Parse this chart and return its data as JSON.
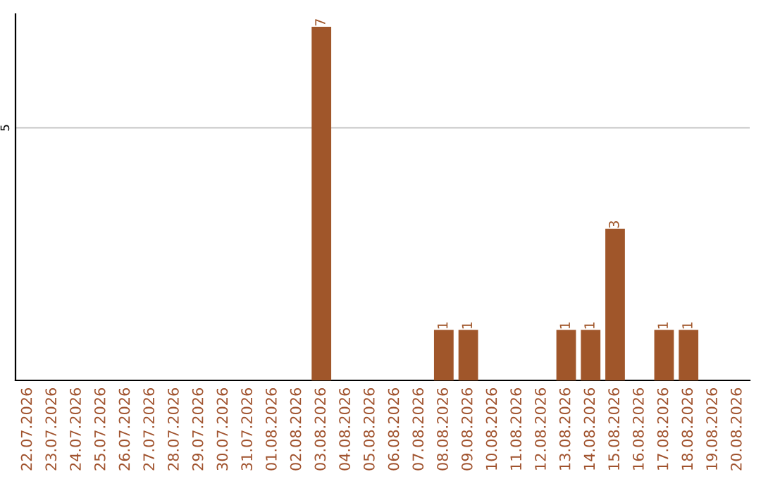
{
  "chart_data": {
    "type": "bar",
    "categories": [
      "22.07.2026",
      "23.07.2026",
      "24.07.2026",
      "25.07.2026",
      "26.07.2026",
      "27.07.2026",
      "28.07.2026",
      "29.07.2026",
      "30.07.2026",
      "31.07.2026",
      "01.08.2026",
      "02.08.2026",
      "03.08.2026",
      "04.08.2026",
      "05.08.2026",
      "06.08.2026",
      "07.08.2026",
      "08.08.2026",
      "09.08.2026",
      "10.08.2026",
      "11.08.2026",
      "12.08.2026",
      "13.08.2026",
      "14.08.2026",
      "15.08.2026",
      "16.08.2026",
      "17.08.2026",
      "18.08.2026",
      "19.08.2026",
      "20.08.2026"
    ],
    "values": [
      null,
      null,
      null,
      null,
      null,
      null,
      null,
      null,
      null,
      null,
      null,
      null,
      7,
      null,
      null,
      null,
      null,
      1,
      1,
      null,
      null,
      null,
      1,
      1,
      3,
      null,
      1,
      1,
      null,
      null
    ],
    "data_labels": true,
    "color": "#a0562a",
    "ylim": [
      0,
      7.25
    ],
    "yticks": [
      5
    ],
    "grid": "y",
    "legend": false
  }
}
